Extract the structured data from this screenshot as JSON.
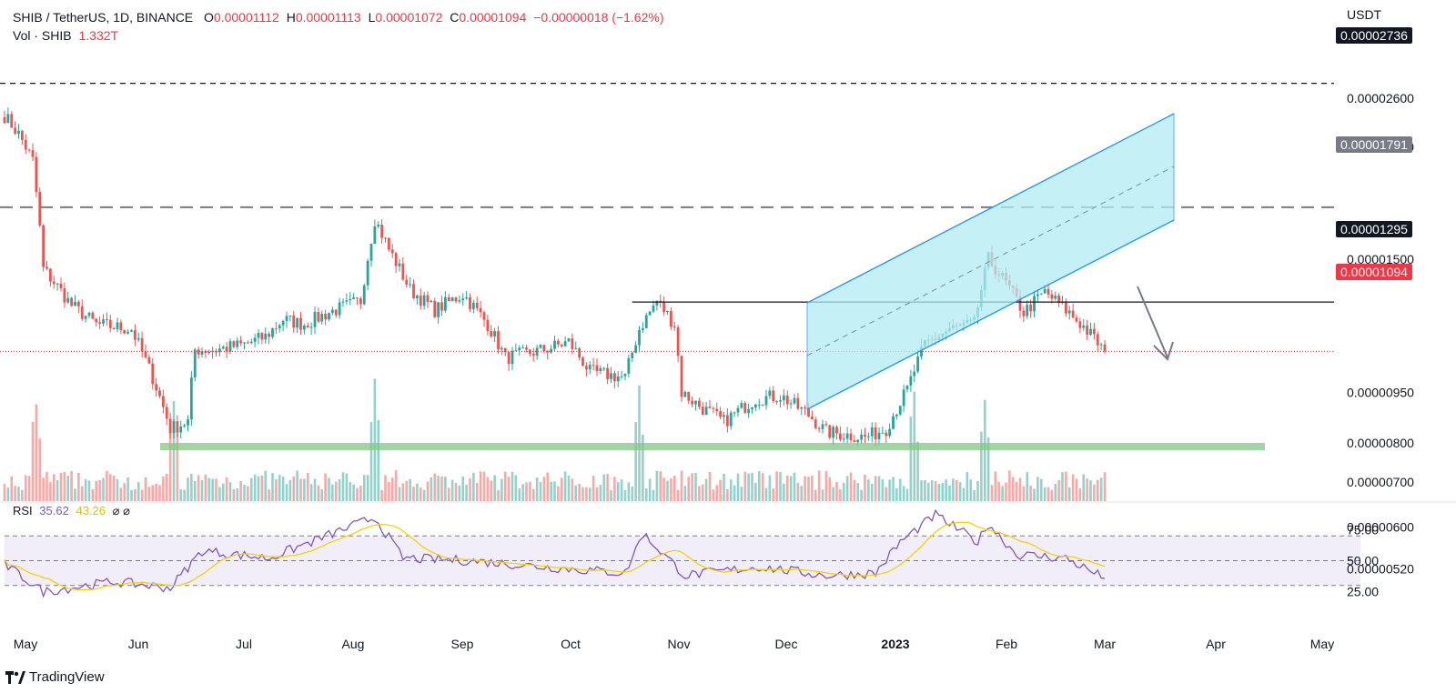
{
  "header": {
    "symbol": "SHIB / TetherUS, 1D, BINANCE",
    "o_label": "O",
    "o_value": "0.00001112",
    "h_label": "H",
    "h_value": "0.00001113",
    "l_label": "L",
    "l_value": "0.00001072",
    "c_label": "C",
    "c_value": "0.00001094",
    "change": "−0.00000018 (−1.62%)",
    "vol_label": "Vol · SHIB",
    "vol_value": "1.332T"
  },
  "axis": {
    "currency": "USDT",
    "price_ticks": [
      {
        "label": "0.00002600",
        "v": 2.6
      },
      {
        "label": "0.00002200",
        "v": 2.2
      },
      {
        "label": "0.00001500",
        "v": 1.5
      },
      {
        "label": "0.00000950",
        "v": 0.95
      },
      {
        "label": "0.00000800",
        "v": 0.8
      },
      {
        "label": "0.00000700",
        "v": 0.7
      },
      {
        "label": "0.00000600",
        "v": 0.6
      },
      {
        "label": "0.00000520",
        "v": 0.52
      }
    ],
    "months": [
      "May",
      "Jun",
      "Jul",
      "Aug",
      "Sep",
      "Oct",
      "Nov",
      "Dec",
      "2023",
      "Feb",
      "Mar",
      "Apr",
      "May"
    ]
  },
  "tags": {
    "top": "0.00002736",
    "resistance": "0.00001791",
    "level": "0.00001295",
    "current": "0.00001094"
  },
  "rsi": {
    "label": "RSI",
    "value": "35.62",
    "ma_value": "43.26",
    "icons": "⌀ ⌀",
    "ticks": [
      "75.00",
      "50.00",
      "25.00"
    ]
  },
  "brand": "TradingView",
  "colors": {
    "up": "#26a69a",
    "down": "#ef5350",
    "channel": "#2196f3",
    "support": "#81c784",
    "rsi": "#7e57c2",
    "rsi_ma": "#f5d300"
  },
  "chart_data": {
    "type": "candlestick",
    "unit_note": "prices in 1e-5 USDT",
    "levels": {
      "high_top": 2.736,
      "resistance": 1.791,
      "horizontal": 1.295,
      "current": 1.094,
      "support_zone": 0.79
    },
    "ylim": [
      0.5,
      2.75
    ],
    "anchors_date_price": [
      [
        "2022-05-01",
        2.45
      ],
      [
        "2022-05-05",
        2.3
      ],
      [
        "2022-05-09",
        2.1
      ],
      [
        "2022-05-12",
        1.45
      ],
      [
        "2022-05-20",
        1.28
      ],
      [
        "2022-05-27",
        1.2
      ],
      [
        "2022-06-06",
        1.18
      ],
      [
        "2022-06-12",
        1.0
      ],
      [
        "2022-06-17",
        0.84
      ],
      [
        "2022-06-22",
        0.86
      ],
      [
        "2022-06-24",
        1.1
      ],
      [
        "2022-06-30",
        1.1
      ],
      [
        "2022-07-08",
        1.12
      ],
      [
        "2022-07-14",
        1.15
      ],
      [
        "2022-07-19",
        1.22
      ],
      [
        "2022-07-25",
        1.2
      ],
      [
        "2022-08-01",
        1.25
      ],
      [
        "2022-08-10",
        1.3
      ],
      [
        "2022-08-14",
        1.72
      ],
      [
        "2022-08-18",
        1.55
      ],
      [
        "2022-08-24",
        1.35
      ],
      [
        "2022-08-31",
        1.26
      ],
      [
        "2022-09-08",
        1.33
      ],
      [
        "2022-09-15",
        1.2
      ],
      [
        "2022-09-20",
        1.07
      ],
      [
        "2022-10-01",
        1.1
      ],
      [
        "2022-10-08",
        1.13
      ],
      [
        "2022-10-14",
        1.02
      ],
      [
        "2022-10-24",
        1.0
      ],
      [
        "2022-10-28",
        1.18
      ],
      [
        "2022-11-02",
        1.3
      ],
      [
        "2022-11-07",
        1.2
      ],
      [
        "2022-11-09",
        0.95
      ],
      [
        "2022-11-15",
        0.9
      ],
      [
        "2022-11-21",
        0.86
      ],
      [
        "2022-11-30",
        0.93
      ],
      [
        "2022-12-07",
        0.94
      ],
      [
        "2022-12-15",
        0.88
      ],
      [
        "2022-12-20",
        0.83
      ],
      [
        "2022-12-31",
        0.815
      ],
      [
        "2023-01-06",
        0.84
      ],
      [
        "2023-01-12",
        0.96
      ],
      [
        "2023-01-17",
        1.12
      ],
      [
        "2023-01-24",
        1.18
      ],
      [
        "2023-01-31",
        1.2
      ],
      [
        "2023-02-04",
        1.5
      ],
      [
        "2023-02-09",
        1.38
      ],
      [
        "2023-02-14",
        1.25
      ],
      [
        "2023-02-20",
        1.34
      ],
      [
        "2023-02-26",
        1.26
      ],
      [
        "2023-03-03",
        1.19
      ],
      [
        "2023-03-09",
        1.094
      ]
    ],
    "volume_spikes_dates": [
      "2022-05-10",
      "2022-06-18",
      "2022-08-14",
      "2022-10-28",
      "2023-01-14",
      "2023-02-03"
    ],
    "rsi_anchors": [
      [
        "2022-05-01",
        47
      ],
      [
        "2022-05-12",
        25
      ],
      [
        "2022-06-01",
        33
      ],
      [
        "2022-06-17",
        28
      ],
      [
        "2022-06-26",
        58
      ],
      [
        "2022-07-15",
        52
      ],
      [
        "2022-08-14",
        85
      ],
      [
        "2022-08-22",
        52
      ],
      [
        "2022-09-10",
        50
      ],
      [
        "2022-10-01",
        45
      ],
      [
        "2022-10-24",
        40
      ],
      [
        "2022-10-29",
        72
      ],
      [
        "2022-11-10",
        38
      ],
      [
        "2022-12-01",
        45
      ],
      [
        "2022-12-20",
        38
      ],
      [
        "2023-01-03",
        40
      ],
      [
        "2023-01-10",
        65
      ],
      [
        "2023-01-20",
        87
      ],
      [
        "2023-02-01",
        65
      ],
      [
        "2023-02-04",
        80
      ],
      [
        "2023-02-12",
        55
      ],
      [
        "2023-02-26",
        52
      ],
      [
        "2023-03-09",
        35.62
      ]
    ],
    "rsi_ylim": [
      15,
      95
    ],
    "rsi_levels": [
      70,
      50,
      30
    ]
  }
}
